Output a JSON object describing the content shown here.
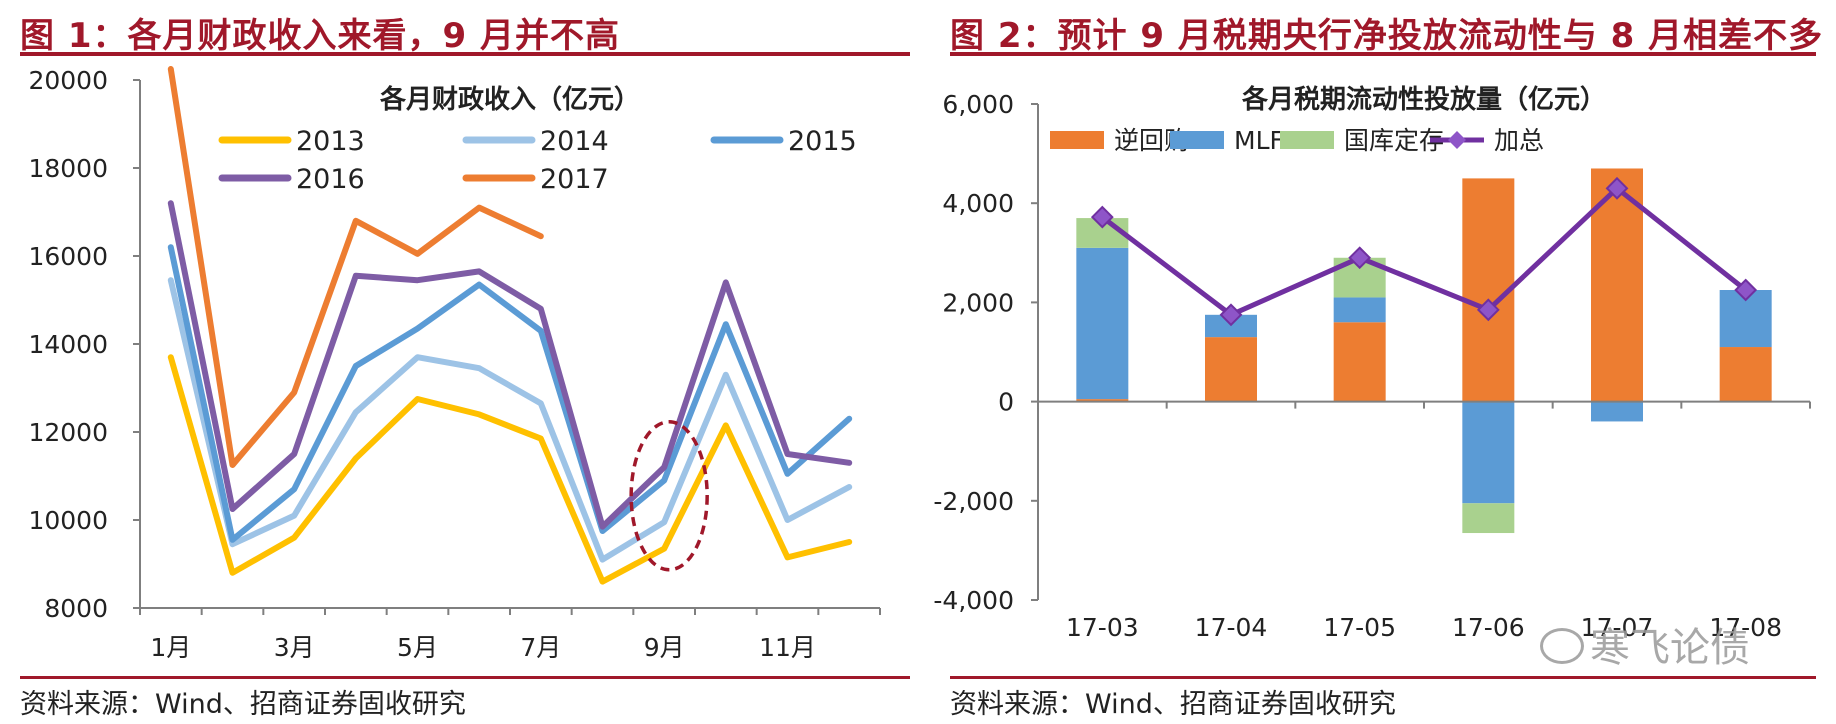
{
  "panels": [
    {
      "figure_title": "图 1：各月财政收入来看，9 月并不高",
      "source": "资料来源：Wind、招商证券固收研究"
    },
    {
      "figure_title": "图 2：预计 9 月税期央行净投放流动性与 8 月相差不多",
      "source": "资料来源：Wind、招商证券固收研究"
    }
  ],
  "watermark": "寒飞论债",
  "chart_data": [
    {
      "type": "line",
      "title": "各月财政收入（亿元）",
      "x": [
        1,
        2,
        3,
        4,
        5,
        6,
        7,
        8,
        9,
        10,
        11,
        12
      ],
      "x_tick_labels": [
        {
          "x": 1,
          "label": "1月"
        },
        {
          "x": 3,
          "label": "3月"
        },
        {
          "x": 5,
          "label": "5月"
        },
        {
          "x": 7,
          "label": "7月"
        },
        {
          "x": 9,
          "label": "9月"
        },
        {
          "x": 11,
          "label": "11月"
        }
      ],
      "ylim": [
        8000,
        20000
      ],
      "yticks": [
        8000,
        10000,
        12000,
        14000,
        16000,
        18000,
        20000
      ],
      "grid": false,
      "legend": "top",
      "series": [
        {
          "name": "2013",
          "color": "#ffc000",
          "values": [
            13700,
            8800,
            9600,
            11400,
            12750,
            12400,
            11850,
            8600,
            9350,
            12150,
            9150,
            9500
          ]
        },
        {
          "name": "2014",
          "color": "#9dc3e6",
          "values": [
            15450,
            9450,
            10100,
            12450,
            13700,
            13450,
            12650,
            9100,
            9950,
            13300,
            10000,
            10750
          ]
        },
        {
          "name": "2015",
          "color": "#5b9bd5",
          "values": [
            16200,
            9550,
            10700,
            13500,
            14350,
            15350,
            14300,
            9750,
            10900,
            14450,
            11050,
            12300
          ]
        },
        {
          "name": "2016",
          "color": "#7e5ca5",
          "values": [
            17200,
            10250,
            11500,
            15550,
            15450,
            15650,
            14800,
            9850,
            11200,
            15400,
            11500,
            11300
          ]
        },
        {
          "name": "2017",
          "color": "#ed7d31",
          "values": [
            20250,
            11250,
            12900,
            16800,
            16050,
            17100,
            16450,
            null,
            null,
            null,
            null,
            null
          ]
        }
      ],
      "annotation": {
        "type": "ellipse",
        "x": 9,
        "y": 10550,
        "color": "#a0182a",
        "style": "dashed"
      }
    },
    {
      "type": "bar",
      "stacked": true,
      "title": "各月税期流动性投放量（亿元）",
      "categories": [
        "17-03",
        "17-04",
        "17-05",
        "17-06",
        "17-07",
        "17-08"
      ],
      "ylim": [
        -4000,
        6000
      ],
      "yticks": [
        -4000,
        -2000,
        0,
        2000,
        4000,
        6000
      ],
      "ytick_labels": [
        "-4,000",
        "-2,000",
        "0",
        "2,000",
        "4,000",
        "6,000"
      ],
      "grid": false,
      "legend": "top",
      "series": [
        {
          "name": "逆回购",
          "kind": "bar",
          "color": "#ed7d31",
          "values": [
            50,
            1300,
            1600,
            4500,
            4700,
            1100
          ]
        },
        {
          "name": "MLF",
          "kind": "bar",
          "color": "#5b9bd5",
          "values": [
            3050,
            450,
            500,
            -2050,
            -400,
            1150
          ]
        },
        {
          "name": "国库定存",
          "kind": "bar",
          "color": "#a9d18e",
          "values": [
            600,
            0,
            800,
            -600,
            0,
            0
          ]
        },
        {
          "name": "加总",
          "kind": "line",
          "color": "#7030a0",
          "values": [
            3720,
            1750,
            2900,
            1850,
            4300,
            2250
          ]
        }
      ]
    }
  ]
}
